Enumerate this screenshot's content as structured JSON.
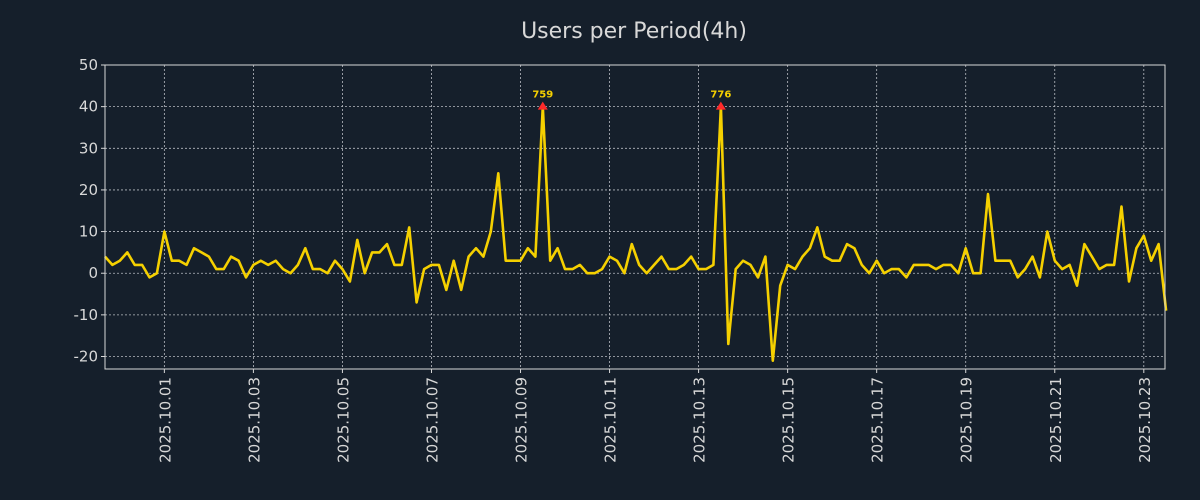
{
  "chart_data": {
    "type": "line",
    "title": "Users per Period(4h)",
    "xlabel": "",
    "ylabel": "",
    "ylim": [
      -23,
      50
    ],
    "yticks": [
      -20,
      -10,
      0,
      10,
      20,
      30,
      40,
      50
    ],
    "period_hours": 4,
    "x_count": 144,
    "xticks": [
      {
        "index": 8,
        "label": "2025.10.01"
      },
      {
        "index": 20,
        "label": "2025.10.03"
      },
      {
        "index": 32,
        "label": "2025.10.05"
      },
      {
        "index": 44,
        "label": "2025.10.07"
      },
      {
        "index": 56,
        "label": "2025.10.09"
      },
      {
        "index": 68,
        "label": "2025.10.11"
      },
      {
        "index": 80,
        "label": "2025.10.13"
      },
      {
        "index": 92,
        "label": "2025.10.15"
      },
      {
        "index": 104,
        "label": "2025.10.17"
      },
      {
        "index": 116,
        "label": "2025.10.19"
      },
      {
        "index": 128,
        "label": "2025.10.21"
      },
      {
        "index": 140,
        "label": "2025.10.23"
      }
    ],
    "grid": true,
    "series": [
      {
        "name": "Users",
        "color": "#f5d000",
        "values": [
          4,
          2,
          3,
          5,
          2,
          2,
          -1,
          0,
          10,
          3,
          3,
          2,
          6,
          5,
          4,
          1,
          1,
          4,
          3,
          -1,
          2,
          3,
          2,
          3,
          1,
          0,
          2,
          6,
          1,
          1,
          0,
          3,
          1,
          -2,
          8,
          0,
          5,
          5,
          7,
          2,
          2,
          11,
          -7,
          1,
          2,
          2,
          -4,
          3,
          -4,
          4,
          6,
          4,
          10,
          24,
          3,
          3,
          3,
          6,
          4,
          40,
          3,
          6,
          1,
          1,
          2,
          0,
          0,
          1,
          4,
          3,
          0,
          7,
          2,
          0,
          2,
          4,
          1,
          1,
          2,
          4,
          1,
          1,
          2,
          40,
          -17,
          1,
          3,
          2,
          -1,
          4,
          -21,
          -3,
          2,
          1,
          4,
          6,
          11,
          4,
          3,
          3,
          7,
          6,
          2,
          0,
          3,
          0,
          1,
          1,
          -1,
          2,
          2,
          2,
          1,
          2,
          2,
          0,
          6,
          0,
          0,
          19,
          3,
          3,
          3,
          -1,
          1,
          4,
          -1,
          10,
          3,
          1,
          2,
          -3,
          7,
          4,
          1,
          2,
          2,
          16,
          -2,
          6,
          9,
          3,
          7,
          -9
        ]
      }
    ],
    "annotations": [
      {
        "index": 59,
        "label": "759",
        "marker_color": "#ff2a2a",
        "text_color": "#f5d000"
      },
      {
        "index": 83,
        "label": "776",
        "marker_color": "#ff2a2a",
        "text_color": "#f5d000"
      }
    ],
    "colors": {
      "background": "#151f2b",
      "axis": "#d8d8d8",
      "grid": "#b8bcc2",
      "text": "#d8d8d8"
    }
  }
}
